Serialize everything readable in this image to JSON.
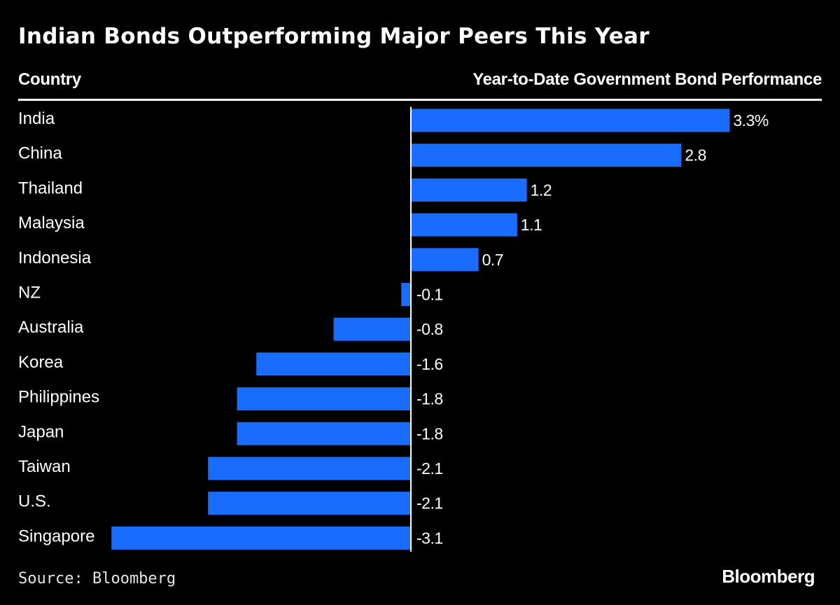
{
  "chart_data": {
    "type": "bar",
    "orientation": "horizontal",
    "title": "Indian Bonds Outperforming Major Peers This Year",
    "category_header": "Country",
    "value_header": "Year-to-Date Government Bond Performance",
    "categories": [
      "India",
      "China",
      "Thailand",
      "Malaysia",
      "Indonesia",
      "NZ",
      "Australia",
      "Korea",
      "Philippines",
      "Japan",
      "Taiwan",
      "U.S.",
      "Singapore"
    ],
    "values": [
      3.3,
      2.8,
      1.2,
      1.1,
      0.7,
      -0.1,
      -0.8,
      -1.6,
      -1.8,
      -1.8,
      -2.1,
      -2.1,
      -3.1
    ],
    "value_labels": [
      "3.3%",
      "2.8",
      "1.2",
      "1.1",
      "0.7",
      "-0.1",
      "-0.8",
      "-1.6",
      "-1.8",
      "-1.8",
      "-2.1",
      "-2.1",
      "-3.1"
    ],
    "xlim": [
      -3.1,
      3.3
    ],
    "bar_color": "#1a6cff",
    "source": "Source: Bloomberg"
  },
  "brand": "Bloomberg",
  "colors": {
    "background": "#000000",
    "text": "#ffffff",
    "bar": "#1a6cff"
  }
}
